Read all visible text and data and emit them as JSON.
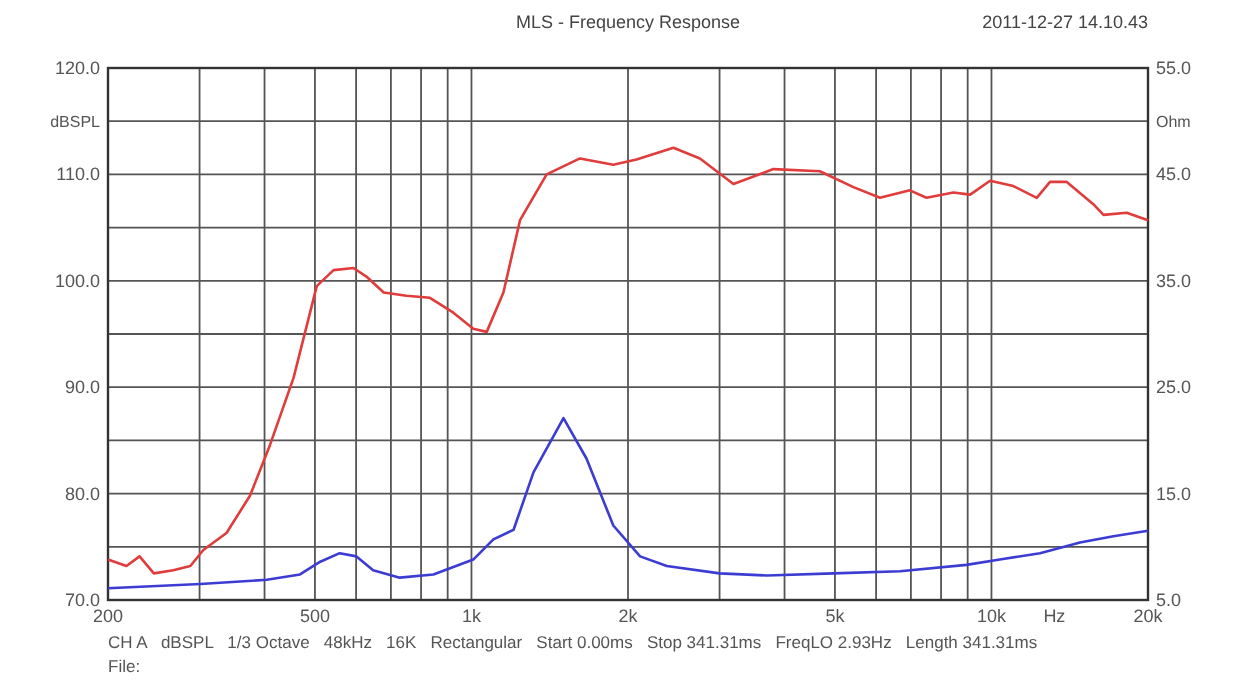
{
  "chart_data": {
    "type": "line",
    "title": "MLS - Frequency Response",
    "xlabel": "Hz",
    "ylabel": "dBSPL",
    "y2label": "Ohm",
    "annotations": [
      "2011-12-27 14.10.43",
      "CH A   dBSPL   1/3 Octave   48kHz   16K   Rectangular   Start 0.00ms   Stop 341.31ms   FreqLO 2.93Hz   Length 341.31ms",
      "File:"
    ],
    "log": "x",
    "grid": true,
    "xlim": [
      200,
      20000
    ],
    "xticks": [
      200,
      {
        "value": 300,
        "label": null
      },
      {
        "value": 400,
        "label": null
      },
      500,
      {
        "value": 600,
        "label": null
      },
      {
        "value": 700,
        "label": null
      },
      {
        "value": 800,
        "label": null
      },
      {
        "value": 900,
        "label": null
      },
      {
        "value": 1000,
        "label": "1k"
      },
      {
        "value": 2000,
        "label": "2k"
      },
      {
        "value": 3000,
        "label": null
      },
      {
        "value": 4000,
        "label": null
      },
      {
        "value": 5000,
        "label": "5k"
      },
      {
        "value": 6000,
        "label": null
      },
      {
        "value": 7000,
        "label": null
      },
      {
        "value": 8000,
        "label": null
      },
      {
        "value": 9000,
        "label": null
      },
      {
        "value": 10000,
        "label": "10k"
      },
      {
        "value": 20000,
        "label": "20k"
      }
    ],
    "ylim": [
      70,
      120
    ],
    "yticks": [
      {
        "value": 70,
        "label": "70.0"
      },
      {
        "value": 75,
        "label": null
      },
      {
        "value": 80,
        "label": "80.0"
      },
      {
        "value": 85,
        "label": null
      },
      {
        "value": 90,
        "label": "90.0"
      },
      {
        "value": 95,
        "label": null
      },
      {
        "value": 100,
        "label": "100.0"
      },
      {
        "value": 105,
        "label": null
      },
      {
        "value": 110,
        "label": "110.0"
      },
      {
        "value": 115,
        "label": null
      },
      {
        "value": 120,
        "label": "120.0"
      }
    ],
    "y2lim": [
      5,
      55
    ],
    "y2ticks": [
      {
        "value": 5,
        "label": "5.0"
      },
      {
        "value": 15,
        "label": "15.0"
      },
      {
        "value": 25,
        "label": "25.0"
      },
      {
        "value": 35,
        "label": "35.0"
      },
      {
        "value": 45,
        "label": "45.0"
      },
      {
        "value": 55,
        "label": "55.0"
      }
    ],
    "series": [
      {
        "color": "#e03c3c",
        "x": [
          200,
          217,
          230,
          245,
          267,
          288,
          305,
          338,
          375,
          410,
          455,
          504,
          543,
          593,
          628,
          678,
          750,
          832,
          923,
          1008,
          1070,
          1152,
          1240,
          1395,
          1617,
          1874,
          2077,
          2446,
          2750,
          3190,
          3808,
          4677,
          5427,
          6103,
          6966,
          7500,
          8450,
          9100,
          9940,
          11020,
          12220,
          12960,
          13940,
          15700,
          16420,
          18200,
          20000
        ],
        "values": [
          73.8,
          73.2,
          74.1,
          72.5,
          72.8,
          73.2,
          74.7,
          76.3,
          79.8,
          84.6,
          90.9,
          99.5,
          101,
          101.2,
          100.4,
          98.9,
          98.6,
          98.4,
          97,
          95.5,
          95.2,
          98.9,
          105.7,
          110,
          111.5,
          110.9,
          111.4,
          112.5,
          111.5,
          109.1,
          110.5,
          110.3,
          108.8,
          107.8,
          108.5,
          107.8,
          108.3,
          108.1,
          109.4,
          108.9,
          107.8,
          109.3,
          109.3,
          107.2,
          106.2,
          106.4,
          105.7
        ]
      },
      {
        "color": "#3c3cd2",
        "axis": "y2",
        "x": [
          200,
          301,
          404,
          468,
          512,
          558,
          601,
          647,
          728,
          845,
          1008,
          1102,
          1205,
          1316,
          1503,
          1664,
          1874,
          2110,
          2375,
          3000,
          3700,
          4970,
          6670,
          8950,
          10380,
          12400,
          14800,
          17160,
          20000
        ],
        "values": [
          6.1,
          6.5,
          6.9,
          7.4,
          8.6,
          9.4,
          9.1,
          7.8,
          7.1,
          7.4,
          8.8,
          10.7,
          11.6,
          17.0,
          22.1,
          18.3,
          12.0,
          9.1,
          8.2,
          7.5,
          7.3,
          7.5,
          7.7,
          8.3,
          8.8,
          9.4,
          10.4,
          11.0,
          11.5
        ]
      }
    ]
  }
}
